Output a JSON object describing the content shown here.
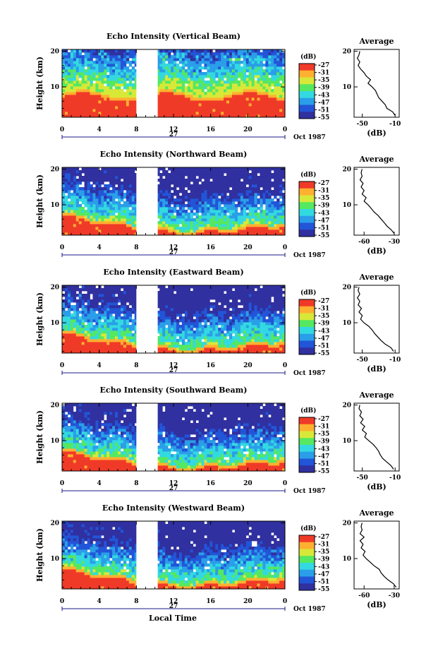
{
  "figure": {
    "bottom_xlabel": "Local Time",
    "date_label": "Oct 1987",
    "day_label": "27",
    "colors": [
      "#3030a0",
      "#2255d8",
      "#2a9ee8",
      "#33d9e0",
      "#55e860",
      "#d8e838",
      "#ffb030",
      "#f03a28"
    ]
  },
  "chart_data": [
    {
      "type": "heatmap",
      "title": "Echo Intensity (Vertical Beam)",
      "ylabel": "Height (km)",
      "xticks": [
        "0",
        "4",
        "8",
        "12",
        "16",
        "20",
        "0"
      ],
      "yticks": [
        "20",
        "10"
      ],
      "xlim": [
        0,
        24
      ],
      "ylim": [
        1.5,
        20.5
      ],
      "data_gap_hours": [
        8,
        10.3
      ],
      "colorbar": {
        "unit": "(dB)",
        "levels": [
          "-27",
          "-31",
          "-35",
          "-39",
          "-43",
          "-47",
          "-51",
          "-55"
        ]
      },
      "profile": {
        "title": "Average",
        "xlabel": "(dB)",
        "xticks": [
          "-50",
          "-10"
        ],
        "xlim": [
          -60,
          -5
        ],
        "yticks": [
          "20",
          "10"
        ],
        "ylim": [
          1.5,
          20.5
        ],
        "height_km": [
          2,
          3,
          4,
          5,
          6,
          7,
          8,
          9,
          10,
          11,
          12,
          13,
          14,
          15,
          16,
          17,
          18,
          19,
          20
        ],
        "avg_db": [
          -10,
          -13,
          -20,
          -22,
          -26,
          -30,
          -32,
          -34,
          -38,
          -43,
          -40,
          -45,
          -48,
          -52,
          -55,
          -53,
          -56,
          -54,
          -53
        ]
      }
    },
    {
      "type": "heatmap",
      "title": "Echo Intensity (Northward Beam)",
      "ylabel": "Height (km)",
      "xticks": [
        "0",
        "4",
        "8",
        "12",
        "16",
        "20",
        "0"
      ],
      "yticks": [
        "20",
        "10"
      ],
      "xlim": [
        0,
        24
      ],
      "ylim": [
        1.5,
        20.5
      ],
      "data_gap_hours": [
        8,
        10.3
      ],
      "colorbar": {
        "unit": "(dB)",
        "levels": [
          "-27",
          "-31",
          "-35",
          "-39",
          "-43",
          "-47",
          "-51",
          "-55"
        ]
      },
      "profile": {
        "title": "Average",
        "xlabel": "(dB)",
        "xticks": [
          "-60",
          "-30"
        ],
        "xlim": [
          -70,
          -25
        ],
        "yticks": [
          "20",
          "10"
        ],
        "ylim": [
          1.5,
          20.5
        ],
        "height_km": [
          2,
          3,
          4,
          5,
          6,
          7,
          8,
          9,
          10,
          11,
          12,
          13,
          14,
          15,
          16,
          17,
          18,
          19,
          20
        ],
        "avg_db": [
          -30,
          -33,
          -37,
          -40,
          -43,
          -46,
          -50,
          -53,
          -56,
          -60,
          -58,
          -62,
          -60,
          -63,
          -61,
          -64,
          -62,
          -63,
          -62
        ]
      }
    },
    {
      "type": "heatmap",
      "title": "Echo Intensity (Eastward Beam)",
      "ylabel": "Height (km)",
      "xticks": [
        "0",
        "4",
        "8",
        "12",
        "16",
        "20",
        "0"
      ],
      "yticks": [
        "20",
        "10"
      ],
      "xlim": [
        0,
        24
      ],
      "ylim": [
        1.5,
        20.5
      ],
      "data_gap_hours": [
        8,
        10.3
      ],
      "colorbar": {
        "unit": "(dB)",
        "levels": [
          "-27",
          "-31",
          "-35",
          "-39",
          "-43",
          "-47",
          "-51",
          "-55"
        ]
      },
      "profile": {
        "title": "Average",
        "xlabel": "(dB)",
        "xticks": [
          "-50",
          "-10"
        ],
        "xlim": [
          -60,
          -5
        ],
        "yticks": [
          "20",
          "10"
        ],
        "ylim": [
          1.5,
          20.5
        ],
        "height_km": [
          2,
          3,
          4,
          5,
          6,
          7,
          8,
          9,
          10,
          11,
          12,
          13,
          14,
          15,
          16,
          17,
          18,
          19,
          20
        ],
        "avg_db": [
          -12,
          -15,
          -22,
          -27,
          -31,
          -35,
          -38,
          -42,
          -48,
          -52,
          -50,
          -54,
          -51,
          -55,
          -53,
          -56,
          -53,
          -55,
          -54
        ]
      }
    },
    {
      "type": "heatmap",
      "title": "Echo Intensity (Southward Beam)",
      "ylabel": "Height (km)",
      "xticks": [
        "0",
        "4",
        "8",
        "12",
        "16",
        "20",
        "0"
      ],
      "yticks": [
        "20",
        "10"
      ],
      "xlim": [
        0,
        24
      ],
      "ylim": [
        1.5,
        20.5
      ],
      "data_gap_hours": [
        8,
        10.3
      ],
      "colorbar": {
        "unit": "(dB)",
        "levels": [
          "-27",
          "-31",
          "-35",
          "-39",
          "-43",
          "-47",
          "-51",
          "-55"
        ]
      },
      "profile": {
        "title": "Average",
        "xlabel": "(dB)",
        "xticks": [
          "-50",
          "-10"
        ],
        "xlim": [
          -60,
          -5
        ],
        "yticks": [
          "20",
          "10"
        ],
        "ylim": [
          1.5,
          20.5
        ],
        "height_km": [
          2,
          3,
          4,
          5,
          6,
          7,
          8,
          9,
          10,
          11,
          12,
          13,
          14,
          15,
          16,
          17,
          18,
          19,
          20
        ],
        "avg_db": [
          -12,
          -15,
          -20,
          -25,
          -28,
          -30,
          -33,
          -37,
          -42,
          -47,
          -45,
          -50,
          -47,
          -52,
          -49,
          -53,
          -51,
          -54,
          -53
        ]
      }
    },
    {
      "type": "heatmap",
      "title": "Echo Intensity (Westward Beam)",
      "ylabel": "Height (km)",
      "xticks": [
        "0",
        "4",
        "8",
        "12",
        "16",
        "20",
        "0"
      ],
      "yticks": [
        "20",
        "10"
      ],
      "xlim": [
        0,
        24
      ],
      "ylim": [
        1.5,
        20.5
      ],
      "data_gap_hours": [
        8,
        10.3
      ],
      "colorbar": {
        "unit": "(dB)",
        "levels": [
          "-27",
          "-31",
          "-35",
          "-39",
          "-43",
          "-47",
          "-51",
          "-55"
        ]
      },
      "profile": {
        "title": "Average",
        "xlabel": "(dB)",
        "xticks": [
          "-60",
          "-30"
        ],
        "xlim": [
          -70,
          -25
        ],
        "yticks": [
          "20",
          "10"
        ],
        "ylim": [
          1.5,
          20.5
        ],
        "height_km": [
          2,
          3,
          4,
          5,
          6,
          7,
          8,
          9,
          10,
          11,
          12,
          13,
          14,
          15,
          16,
          17,
          18,
          19,
          20
        ],
        "avg_db": [
          -28,
          -31,
          -36,
          -40,
          -43,
          -45,
          -50,
          -54,
          -58,
          -61,
          -59,
          -63,
          -61,
          -64,
          -60,
          -64,
          -62,
          -63,
          -62
        ]
      }
    }
  ]
}
